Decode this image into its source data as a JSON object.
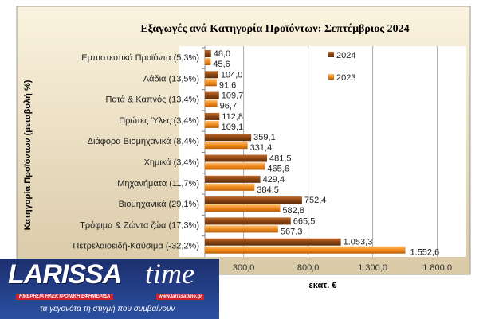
{
  "chart_data": {
    "type": "bar",
    "orientation": "horizontal",
    "title": "Εξαγωγές ανά Κατηγορία Προϊόντων:  Σεπτέμβριος 2024",
    "xlabel": "εκατ. €",
    "ylabel": "Κατηγορία Προϊόντων (μεταβολή %)",
    "categories": [
      "Εμπιστευτικά Προϊόντα (5,3%)",
      "Λάδια (13,5%)",
      "Ποτά & Καπνός (13,4%)",
      "Πρώτες Ύλες (3,4%)",
      "Διάφορα Βιομηχανικά (8,4%)",
      "Χημικά (3,4%)",
      "Μηχανήματα (11,7%)",
      "Βιομηχανικά (29,1%)",
      "Τρόφιμα & Ζώντα ζώα (17,3%)",
      "Πετρελαιοειδή-Καύσιμα (-32,2%)"
    ],
    "series": [
      {
        "name": "2024",
        "color": "#8b4513",
        "values": [
          48.0,
          104.0,
          109.7,
          112.8,
          359.1,
          481.5,
          429.4,
          752.4,
          665.5,
          1053.3
        ],
        "labels": [
          "48,0",
          "104,0",
          "109,7",
          "112,8",
          "359,1",
          "481,5",
          "429,4",
          "752,4",
          "665,5",
          "1.053,3"
        ]
      },
      {
        "name": "2023",
        "color": "#f08a1c",
        "values": [
          45.6,
          91.6,
          96.7,
          109.1,
          331.4,
          465.6,
          384.5,
          582.8,
          567.3,
          1552.6
        ],
        "labels": [
          "45,6",
          "91,6",
          "96,7",
          "109,1",
          "331,4",
          "465,6",
          "384,5",
          "582,8",
          "567,3",
          "1.552,6"
        ]
      }
    ],
    "xticks": [
      300,
      800,
      1300,
      1800
    ],
    "xtick_labels": [
      "300,0",
      "800,0",
      "1.300,0",
      "1.800,0"
    ],
    "xlim": [
      -200,
      1800
    ],
    "grid": true,
    "legend": "top-right"
  },
  "logo": {
    "brand": "LARISSA",
    "time": "time",
    "url": "www.larissatime.gr",
    "subtitle": "ΗΜΕΡΗΣΙΑ ΗΛΕΚΤΡΟΝΙΚΗ ΕΦΗΜΕΡΙΔΑ",
    "tagline": "τα γεγονότα τη στιγμή που συμβαίνουν"
  }
}
